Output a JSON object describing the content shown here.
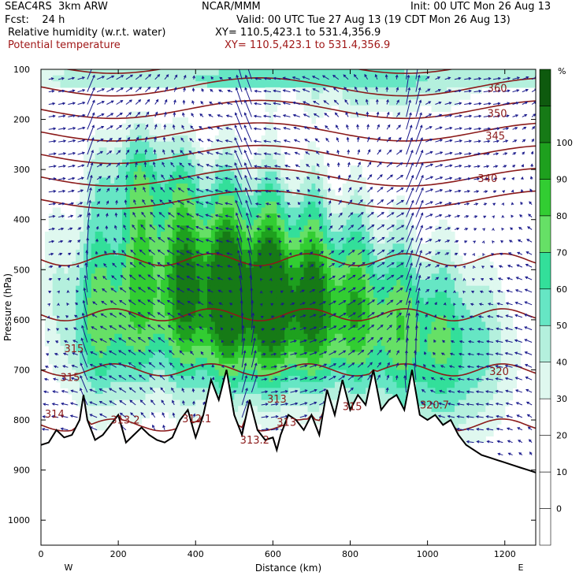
{
  "header": {
    "model": "SEAC4RS  3km ARW",
    "center": "NCAR/MMM",
    "init": "Init: 00 UTC Mon 26 Aug 13",
    "fcst": "Fcst:    24 h",
    "valid": "Valid: 00 UTC Tue 27 Aug 13 (19 CDT Mon 26 Aug 13)",
    "field1": "Relative humidity (w.r.t. water)",
    "field1_xy": "XY= 110.5,423.1 to 531.4,356.9",
    "field2": "Potential temperature",
    "field2_xy": "XY= 110.5,423.1 to 531.4,356.9"
  },
  "colors": {
    "theta": "#8b1a1a",
    "wind": "#1a1a8c",
    "terrain": "#000000",
    "rh_levels": [
      "#ffffff",
      "#ffffff",
      "#ffffff",
      "#ffffff",
      "#dff8ef",
      "#b4f0dd",
      "#66e6c4",
      "#33df9a",
      "#66e066",
      "#32cd32",
      "#1ea01e",
      "#167a16",
      "#0e5a0e"
    ]
  },
  "chart_data": {
    "type": "heatmap",
    "title": "",
    "xlabel": "Distance (km)",
    "ylabel": "Pressure (hPa)",
    "xlim": [
      0,
      1280
    ],
    "ylim": [
      1050,
      100
    ],
    "x_ticks": [
      "0",
      "200",
      "400",
      "600",
      "800",
      "1000",
      "1200"
    ],
    "y_ticks": [
      "100",
      "200",
      "300",
      "400",
      "500",
      "600",
      "700",
      "800",
      "900",
      "1000"
    ],
    "x_end_labels": {
      "left": "W",
      "right": "E"
    },
    "colorbar": {
      "unit": "%",
      "levels": [
        -10,
        0,
        10,
        20,
        30,
        40,
        50,
        60,
        70,
        80,
        90,
        100,
        110
      ],
      "tick_labels": [
        "0",
        "10",
        "20",
        "30",
        "40",
        "50",
        "60",
        "70",
        "80",
        "90",
        "100"
      ]
    },
    "theta_contour_labels": [
      {
        "text": "360",
        "x": 1155,
        "p": 145
      },
      {
        "text": "350",
        "x": 1155,
        "p": 195
      },
      {
        "text": "345",
        "x": 1150,
        "p": 240
      },
      {
        "text": "340",
        "x": 1130,
        "p": 325
      },
      {
        "text": "315",
        "x": 60,
        "p": 665
      },
      {
        "text": "315",
        "x": 50,
        "p": 722
      },
      {
        "text": "314",
        "x": 10,
        "p": 795
      },
      {
        "text": "313.2",
        "x": 180,
        "p": 807
      },
      {
        "text": "312.1",
        "x": 365,
        "p": 805
      },
      {
        "text": "313.2",
        "x": 515,
        "p": 847
      },
      {
        "text": "313",
        "x": 585,
        "p": 765
      },
      {
        "text": "313",
        "x": 610,
        "p": 812
      },
      {
        "text": "315",
        "x": 780,
        "p": 780
      },
      {
        "text": "320.7",
        "x": 980,
        "p": 777
      },
      {
        "text": "320",
        "x": 1160,
        "p": 710
      }
    ],
    "terrain_surface": {
      "x": [
        0,
        20,
        40,
        60,
        80,
        100,
        110,
        120,
        140,
        160,
        180,
        200,
        220,
        240,
        260,
        280,
        300,
        320,
        340,
        360,
        380,
        400,
        420,
        440,
        460,
        480,
        500,
        520,
        540,
        560,
        580,
        600,
        610,
        620,
        640,
        660,
        680,
        700,
        720,
        740,
        760,
        780,
        800,
        820,
        840,
        860,
        880,
        900,
        920,
        940,
        960,
        980,
        1000,
        1020,
        1040,
        1060,
        1080,
        1100,
        1120,
        1140,
        1160,
        1180,
        1200,
        1220,
        1240,
        1260,
        1280
      ],
      "p": [
        850,
        845,
        820,
        835,
        830,
        800,
        750,
        800,
        840,
        830,
        810,
        790,
        845,
        830,
        815,
        830,
        840,
        845,
        835,
        800,
        780,
        835,
        790,
        720,
        760,
        700,
        790,
        830,
        760,
        820,
        840,
        835,
        860,
        830,
        790,
        800,
        820,
        790,
        830,
        740,
        790,
        720,
        780,
        750,
        770,
        700,
        780,
        760,
        750,
        780,
        700,
        790,
        800,
        790,
        810,
        800,
        830,
        850,
        860,
        870,
        875,
        880,
        885,
        890,
        895,
        900,
        905
      ]
    },
    "theta_levels": [
      300,
      305,
      310,
      315,
      320,
      325,
      330,
      335,
      340,
      345,
      350,
      355,
      360,
      365,
      370,
      380,
      390
    ]
  }
}
